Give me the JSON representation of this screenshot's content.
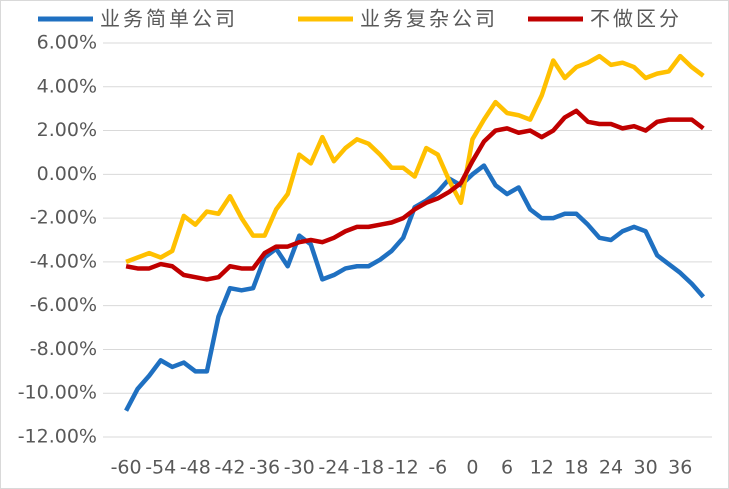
{
  "chart_data": {
    "type": "line",
    "x": [
      -60,
      -58,
      -56,
      -54,
      -52,
      -50,
      -48,
      -46,
      -44,
      -42,
      -40,
      -38,
      -36,
      -34,
      -32,
      -30,
      -28,
      -26,
      -24,
      -22,
      -20,
      -18,
      -16,
      -14,
      -12,
      -10,
      -8,
      -6,
      -4,
      -2,
      0,
      2,
      4,
      6,
      8,
      10,
      12,
      14,
      16,
      18,
      20,
      22,
      24,
      26,
      28,
      30,
      32,
      34,
      36,
      38,
      40
    ],
    "series": [
      {
        "name": "业务简单公司",
        "color": "#1f70c1",
        "values": [
          -10.8,
          -9.8,
          -9.2,
          -8.5,
          -8.8,
          -8.6,
          -9.0,
          -9.0,
          -6.5,
          -5.2,
          -5.3,
          -5.2,
          -3.8,
          -3.4,
          -4.2,
          -2.8,
          -3.2,
          -4.8,
          -4.6,
          -4.3,
          -4.2,
          -4.2,
          -3.9,
          -3.5,
          -2.9,
          -1.5,
          -1.2,
          -0.8,
          -0.2,
          -0.5,
          0.0,
          0.4,
          -0.5,
          -0.9,
          -0.6,
          -1.6,
          -2.0,
          -2.0,
          -1.8,
          -1.8,
          -2.3,
          -2.9,
          -3.0,
          -2.6,
          -2.4,
          -2.6,
          -3.7,
          -4.1,
          -4.5,
          -5.0,
          -5.6
        ]
      },
      {
        "name": "业务复杂公司",
        "color": "#ffc000",
        "values": [
          -4.0,
          -3.8,
          -3.6,
          -3.8,
          -3.5,
          -1.9,
          -2.3,
          -1.7,
          -1.8,
          -1.0,
          -2.0,
          -2.8,
          -2.8,
          -1.6,
          -0.9,
          0.9,
          0.5,
          1.7,
          0.6,
          1.2,
          1.6,
          1.4,
          0.9,
          0.3,
          0.3,
          -0.1,
          1.2,
          0.9,
          -0.3,
          -1.3,
          1.6,
          2.5,
          3.3,
          2.8,
          2.7,
          2.5,
          3.6,
          5.2,
          4.4,
          4.9,
          5.1,
          5.4,
          5.0,
          5.1,
          4.9,
          4.4,
          4.6,
          4.7,
          5.4,
          4.9,
          4.5
        ]
      },
      {
        "name": "不做区分",
        "color": "#c00000",
        "values": [
          -4.2,
          -4.3,
          -4.3,
          -4.1,
          -4.2,
          -4.6,
          -4.7,
          -4.8,
          -4.7,
          -4.2,
          -4.3,
          -4.3,
          -3.6,
          -3.3,
          -3.3,
          -3.1,
          -3.0,
          -3.1,
          -2.9,
          -2.6,
          -2.4,
          -2.4,
          -2.3,
          -2.2,
          -2.0,
          -1.6,
          -1.3,
          -1.1,
          -0.8,
          -0.4,
          0.6,
          1.5,
          2.0,
          2.1,
          1.9,
          2.0,
          1.7,
          2.0,
          2.6,
          2.9,
          2.4,
          2.3,
          2.3,
          2.1,
          2.2,
          2.0,
          2.4,
          2.5,
          2.5,
          2.5,
          2.1
        ]
      }
    ],
    "xlim": [
      -64,
      41.5
    ],
    "xticks": [
      -60,
      -54,
      -48,
      -42,
      -36,
      -30,
      -24,
      -18,
      -12,
      -6,
      0,
      6,
      12,
      18,
      24,
      30,
      36
    ],
    "ylim": [
      -12,
      6
    ],
    "yticks": [
      {
        "value": -12,
        "label": "-12.00%"
      },
      {
        "value": -10,
        "label": "-10.00%"
      },
      {
        "value": -8,
        "label": "-8.00%"
      },
      {
        "value": -6,
        "label": "-6.00%"
      },
      {
        "value": -4,
        "label": "-4.00%"
      },
      {
        "value": -2,
        "label": "-2.00%"
      },
      {
        "value": 0,
        "label": "0.00%"
      },
      {
        "value": 2,
        "label": "2.00%"
      },
      {
        "value": 4,
        "label": "4.00%"
      },
      {
        "value": 6,
        "label": "6.00%"
      }
    ],
    "grid": true,
    "legend": "top"
  }
}
